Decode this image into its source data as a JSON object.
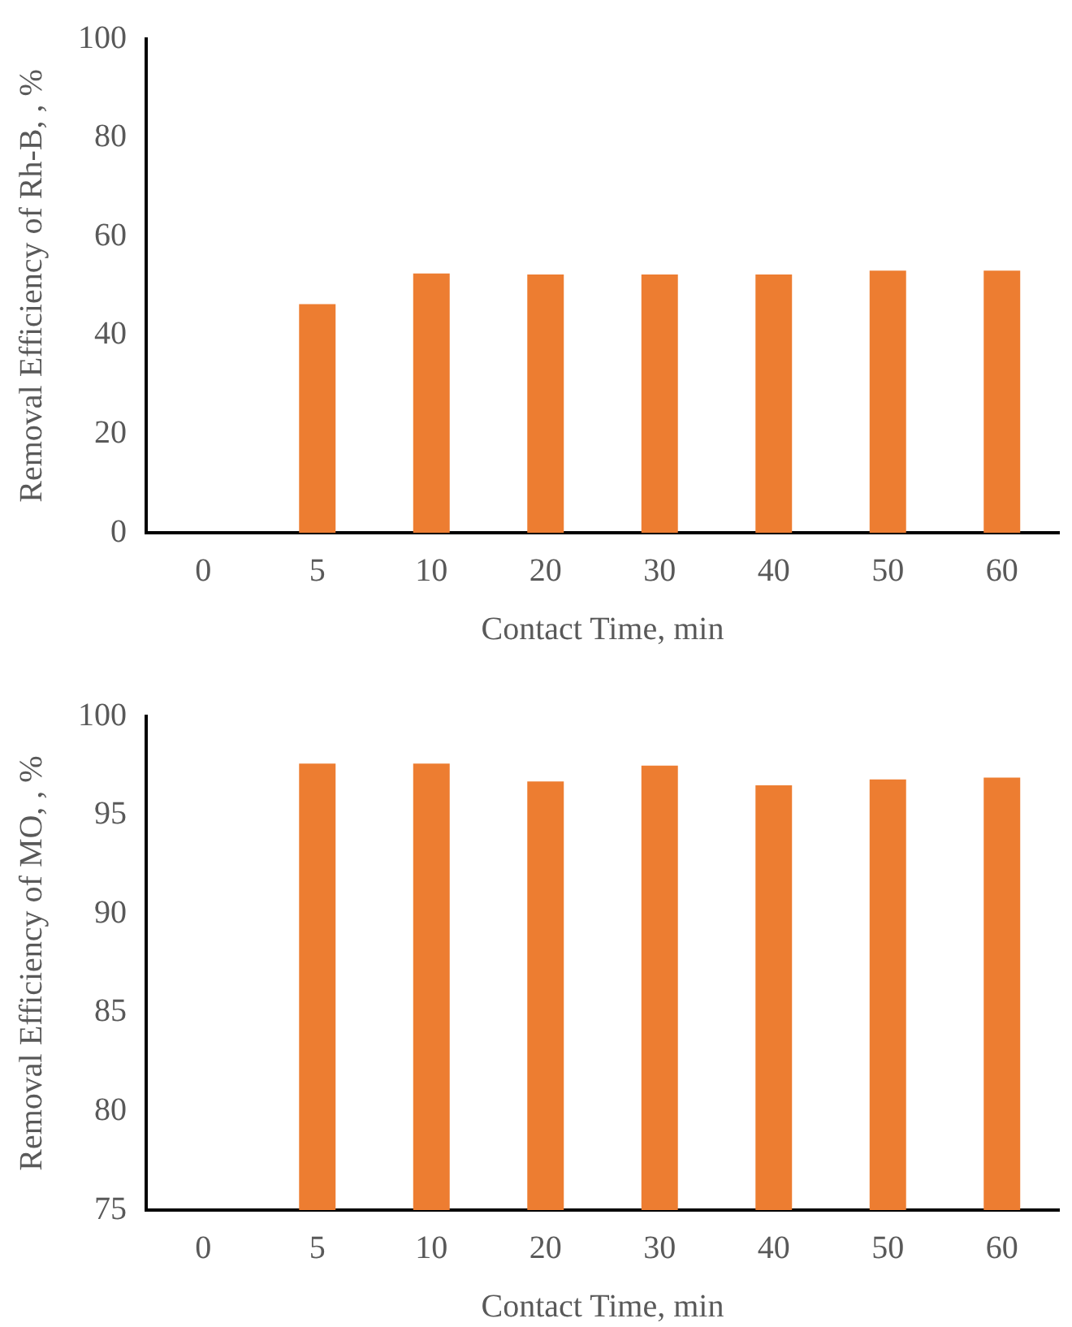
{
  "chart_data": [
    {
      "type": "bar",
      "categories": [
        "0",
        "5",
        "10",
        "20",
        "30",
        "40",
        "50",
        "60"
      ],
      "values": [
        0,
        46.3,
        52.5,
        52.3,
        52.3,
        52.3,
        53.1,
        53.1
      ],
      "color": "#ed7d31",
      "xlabel": "Contact Time, min",
      "ylabel": "Removal Efficiency of Rh-B, , %",
      "ylim": [
        0,
        100
      ],
      "yticks": [
        0,
        20,
        40,
        60,
        80,
        100
      ],
      "grid": false,
      "legend": false
    },
    {
      "type": "bar",
      "categories": [
        "0",
        "5",
        "10",
        "20",
        "30",
        "40",
        "50",
        "60"
      ],
      "values": [
        null,
        97.6,
        97.6,
        96.7,
        97.5,
        96.5,
        96.8,
        96.9
      ],
      "color": "#ed7d31",
      "xlabel": "Contact Time, min",
      "ylabel": "Removal Efficiency of MO, , %",
      "ylim": [
        75,
        100
      ],
      "yticks": [
        75,
        80,
        85,
        90,
        95,
        100
      ],
      "grid": false,
      "legend": false
    }
  ]
}
